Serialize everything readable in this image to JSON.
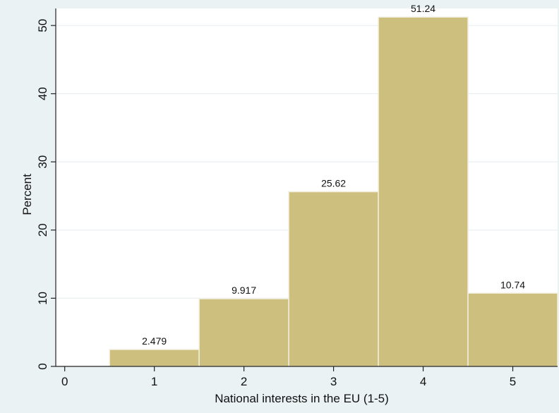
{
  "chart_data": {
    "type": "bar",
    "title": "",
    "xlabel": "National interests in the EU (1-5)",
    "ylabel": "Percent",
    "categories": [
      1,
      2,
      3,
      4,
      5
    ],
    "values": [
      2.479,
      9.917,
      25.62,
      51.24,
      10.74
    ],
    "value_labels": [
      "2.479",
      "9.917",
      "25.62",
      "51.24",
      "10.74"
    ],
    "xlim": [
      -0.1,
      5.5
    ],
    "ylim": [
      0,
      52.5
    ],
    "xticks": [
      0,
      1,
      2,
      3,
      4,
      5
    ],
    "yticks": [
      0,
      10,
      20,
      30,
      40,
      50
    ],
    "grid": "horizontal",
    "colors": {
      "background": "#eaf2f3",
      "plot_background": "#ffffff",
      "bar_fill": "#cdbf7e",
      "bar_stroke": "#f2eedd",
      "grid": "#e6ecef",
      "axis": "#222222"
    }
  }
}
